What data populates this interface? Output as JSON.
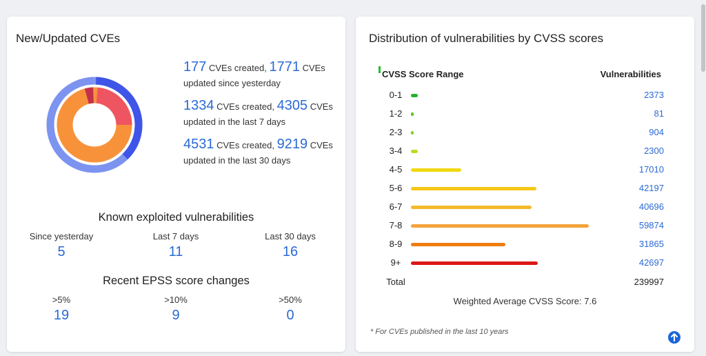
{
  "left_card": {
    "title": "New/Updated CVEs",
    "stats": [
      {
        "created": "177",
        "created_label": "CVEs created,",
        "updated": "1771",
        "updated_label": "CVEs updated since yesterday"
      },
      {
        "created": "1334",
        "created_label": "CVEs created,",
        "updated": "4305",
        "updated_label": "CVEs updated in the last 7 days"
      },
      {
        "created": "4531",
        "created_label": "CVEs created,",
        "updated": "9219",
        "updated_label": "CVEs updated in the last 30 days"
      }
    ],
    "donut": {
      "outer_color": "#7c93f0",
      "outer_accent_color": "#3f55e8",
      "inner_color": "#f7923a",
      "inner_accent_color": "#ef5561",
      "inner_small_color": "#c4304b"
    },
    "known_exploited": {
      "title": "Known exploited vulnerabilities",
      "items": [
        {
          "label": "Since yesterday",
          "value": "5"
        },
        {
          "label": "Last 7 days",
          "value": "11"
        },
        {
          "label": "Last 30 days",
          "value": "16"
        }
      ]
    },
    "epss": {
      "title": "Recent EPSS score changes",
      "items": [
        {
          "label": ">5%",
          "value": "19"
        },
        {
          "label": ">10%",
          "value": "9"
        },
        {
          "label": ">50%",
          "value": "0"
        }
      ]
    }
  },
  "right_card": {
    "title": "Distribution of vulnerabilities by CVSS scores",
    "col_range": "CVSS Score Range",
    "col_vulns": "Vulnerabilities",
    "rows": [
      {
        "range": "0-1",
        "count": "2373",
        "value": 2373,
        "color": "#22b22b"
      },
      {
        "range": "1-2",
        "count": "81",
        "value": 81,
        "color": "#5cc12c"
      },
      {
        "range": "2-3",
        "count": "904",
        "value": 904,
        "color": "#7fd12a"
      },
      {
        "range": "3-4",
        "count": "2300",
        "value": 2300,
        "color": "#b8dd1f"
      },
      {
        "range": "4-5",
        "count": "17010",
        "value": 17010,
        "color": "#f1d80f"
      },
      {
        "range": "5-6",
        "count": "42197",
        "value": 42197,
        "color": "#f5c816"
      },
      {
        "range": "6-7",
        "count": "40696",
        "value": 40696,
        "color": "#f4b92a"
      },
      {
        "range": "7-8",
        "count": "59874",
        "value": 59874,
        "color": "#f3a33b"
      },
      {
        "range": "8-9",
        "count": "31865",
        "value": 31865,
        "color": "#ee7d12"
      },
      {
        "range": "9+",
        "count": "42697",
        "value": 42697,
        "color": "#dd1717"
      }
    ],
    "total_label": "Total",
    "total_value": "239997",
    "weighted_avg": "Weighted Average CVSS Score: 7.6",
    "footnote": "* For CVEs published in the last 10 years"
  }
}
